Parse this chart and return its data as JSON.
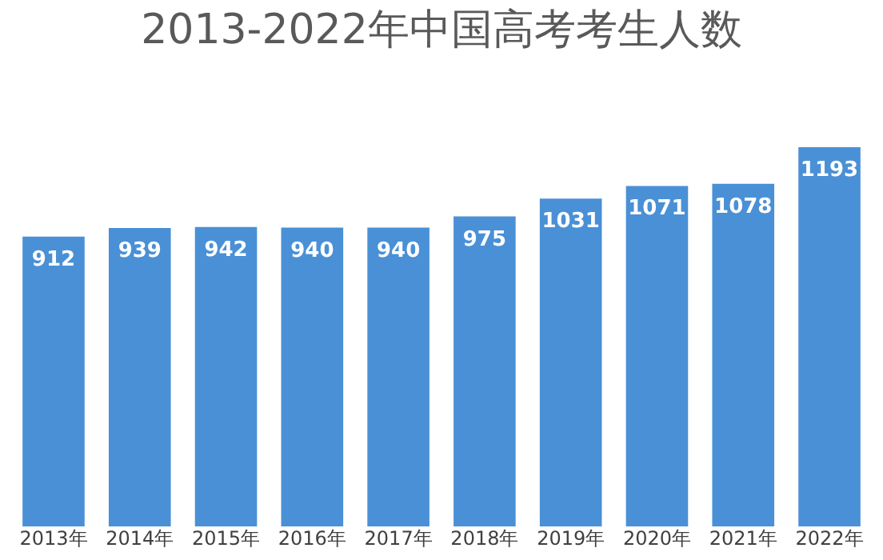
{
  "chart_data": {
    "type": "bar",
    "title": "2013-2022年中国高考考生人数",
    "categories": [
      "2013年",
      "2014年",
      "2015年",
      "2016年",
      "2017年",
      "2018年",
      "2019年",
      "2020年",
      "2021年",
      "2022年"
    ],
    "values": [
      912,
      939,
      942,
      940,
      940,
      975,
      1031,
      1071,
      1078,
      1193
    ],
    "color": "#4a90d6",
    "data_labels": true,
    "grid": false,
    "tick_labels": "x"
  }
}
